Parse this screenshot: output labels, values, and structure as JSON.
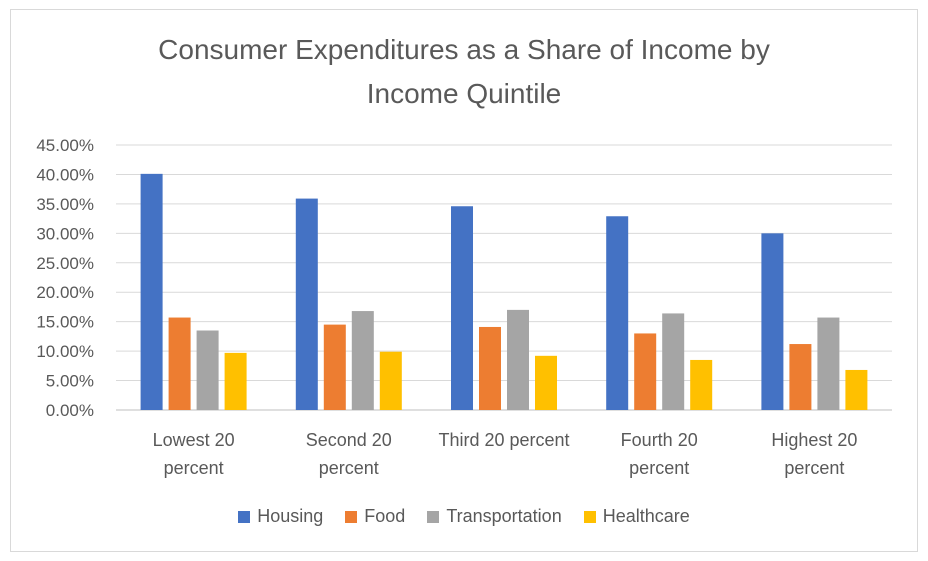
{
  "chart_data": {
    "type": "bar",
    "title_lines": [
      "Consumer Expenditures as a Share of Income by",
      "Income Quintile"
    ],
    "categories": [
      [
        "Lowest 20",
        "percent"
      ],
      [
        "Second 20",
        "percent"
      ],
      [
        "Third 20 percent"
      ],
      [
        "Fourth 20",
        "percent"
      ],
      [
        "Highest 20",
        "percent"
      ]
    ],
    "series": [
      {
        "name": "Housing",
        "color": "#4472c4",
        "values": [
          0.401,
          0.359,
          0.346,
          0.329,
          0.3
        ]
      },
      {
        "name": "Food",
        "color": "#ed7d31",
        "values": [
          0.157,
          0.145,
          0.141,
          0.13,
          0.112
        ]
      },
      {
        "name": "Transportation",
        "color": "#a5a5a5",
        "values": [
          0.135,
          0.168,
          0.17,
          0.164,
          0.157
        ]
      },
      {
        "name": "Healthcare",
        "color": "#ffc000",
        "values": [
          0.097,
          0.099,
          0.092,
          0.085,
          0.068
        ]
      }
    ],
    "ylim": [
      0,
      0.45
    ],
    "yticks": [
      0,
      0.05,
      0.1,
      0.15,
      0.2,
      0.25,
      0.3,
      0.35,
      0.4,
      0.45
    ],
    "ytick_labels": [
      "0.00%",
      "5.00%",
      "10.00%",
      "15.00%",
      "20.00%",
      "25.00%",
      "30.00%",
      "35.00%",
      "40.00%",
      "45.00%"
    ],
    "grid": true,
    "legend_position": "bottom"
  }
}
